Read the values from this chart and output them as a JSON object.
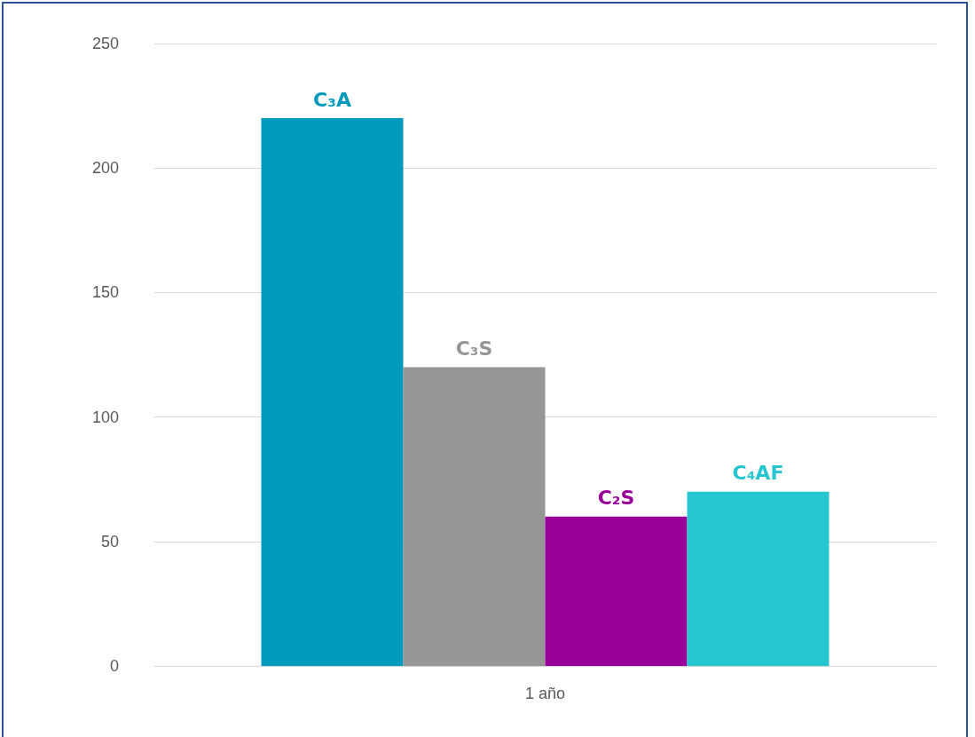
{
  "chart_data": {
    "type": "bar",
    "categories": [
      "1 año"
    ],
    "series": [
      {
        "name": "C₃A",
        "color": "#009abd",
        "values": [
          220
        ]
      },
      {
        "name": "C₃S",
        "color": "#969696",
        "values": [
          120
        ]
      },
      {
        "name": "C₂S",
        "color": "#990099",
        "values": [
          60
        ]
      },
      {
        "name": "C₄AF",
        "color": "#26c6d1",
        "values": [
          70
        ]
      }
    ],
    "ylim": [
      0,
      250
    ],
    "yticks": [
      0,
      50,
      100,
      150,
      200,
      250
    ],
    "grid": "y"
  }
}
